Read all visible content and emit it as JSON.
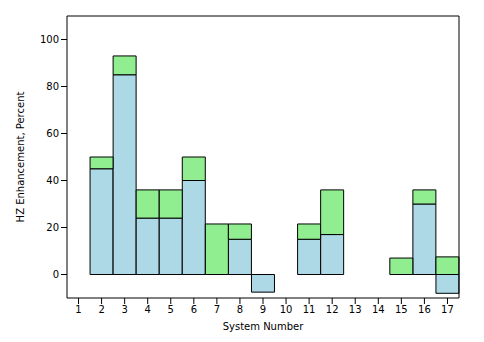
{
  "chart_data": {
    "type": "bar",
    "stacked": true,
    "x_label": "System Number",
    "y_label": "HZ Enhancement, Percent",
    "categories": [
      "1",
      "2",
      "3",
      "4",
      "5",
      "6",
      "7",
      "8",
      "9",
      "10",
      "11",
      "12",
      "13",
      "14",
      "15",
      "16",
      "17"
    ],
    "series": [
      {
        "color": "#add8e6",
        "values": [
          0,
          45,
          85,
          24,
          24,
          40,
          0,
          15,
          -7.5,
          0,
          15,
          17,
          0,
          0,
          0,
          30,
          -8
        ]
      },
      {
        "color": "#90ee90",
        "values": [
          0,
          5,
          8,
          12,
          12,
          10,
          21.5,
          6.5,
          0,
          0,
          6.5,
          19,
          0,
          0,
          7,
          6,
          7.5
        ]
      }
    ],
    "ylim": [
      -10,
      110
    ],
    "yticks": [
      0,
      20,
      40,
      60,
      80,
      100
    ]
  }
}
